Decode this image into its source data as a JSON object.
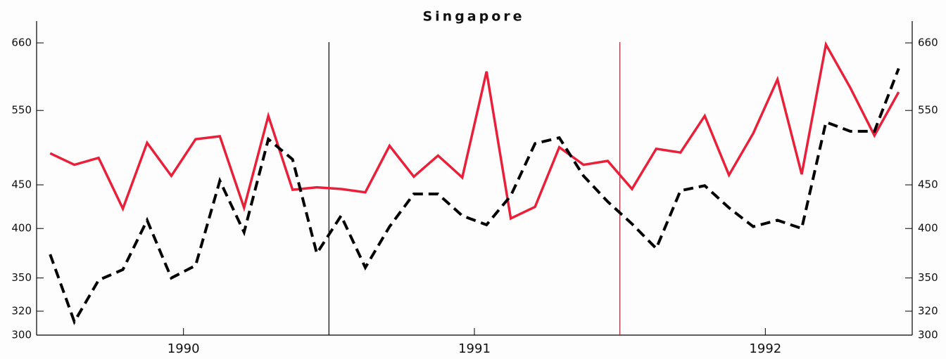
{
  "chart_data": {
    "type": "line",
    "title": "Singapore",
    "x": [
      1990.0417,
      1990.125,
      1990.2083,
      1990.2917,
      1990.375,
      1990.4583,
      1990.5417,
      1990.625,
      1990.7083,
      1990.7917,
      1990.875,
      1990.9583,
      1991.0417,
      1991.125,
      1991.2083,
      1991.2917,
      1991.375,
      1991.4583,
      1991.5417,
      1991.625,
      1991.7083,
      1991.7917,
      1991.875,
      1991.9583,
      1992.0417,
      1992.125,
      1992.2083,
      1992.2917,
      1992.375,
      1992.4583,
      1992.5417,
      1992.625,
      1992.7083,
      1992.7917,
      1992.875,
      1992.9583
    ],
    "series": [
      {
        "color": "#e8203a",
        "dash": false,
        "values": [
          490,
          475,
          484,
          422,
          504,
          461,
          509,
          513,
          423,
          542,
          444,
          447,
          445,
          441,
          500,
          460,
          487,
          459,
          611,
          411,
          424,
          498,
          475,
          480,
          445,
          496,
          491,
          542,
          462,
          517,
          598,
          463,
          657,
          585,
          514,
          578
        ]
      },
      {
        "color": "#000000",
        "dash": true,
        "values": [
          373,
          311,
          348,
          358,
          409,
          350,
          362,
          455,
          396,
          509,
          482,
          374,
          414,
          360,
          402,
          439,
          439,
          414,
          404,
          437,
          503,
          511,
          461,
          430,
          405,
          379,
          443,
          449,
          423,
          402,
          409,
          400,
          533,
          520,
          520,
          616
        ]
      }
    ],
    "xlim": [
      1990,
      1993
    ],
    "xticks": [
      {
        "value": 1990.5,
        "label": "1990"
      },
      {
        "value": 1991.5,
        "label": "1991"
      },
      {
        "value": 1992.5,
        "label": "1992"
      }
    ],
    "ylim": [
      300,
      700
    ],
    "ylog": true,
    "yticks": [
      300,
      320,
      350,
      400,
      450,
      550,
      660
    ],
    "vlines": [
      {
        "x": 1991,
        "color": "#000000"
      },
      {
        "x": 1992,
        "color": "#a02838"
      }
    ]
  }
}
